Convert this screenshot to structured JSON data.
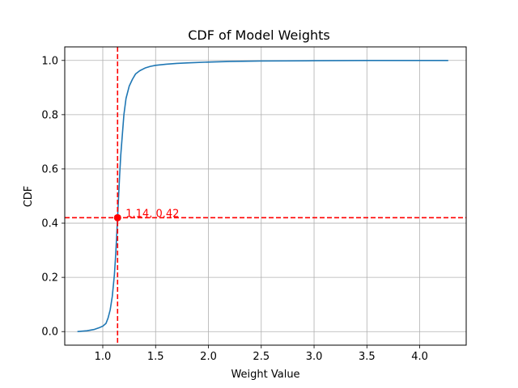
{
  "chart_data": {
    "type": "line",
    "title": "CDF of Model Weights",
    "xlabel": "Weight Value",
    "ylabel": "CDF",
    "xlim": [
      0.64,
      4.44
    ],
    "ylim": [
      -0.05,
      1.05
    ],
    "xticks": [
      1.0,
      1.5,
      2.0,
      2.5,
      3.0,
      3.5,
      4.0
    ],
    "xtick_labels": [
      "1.0",
      "1.5",
      "2.0",
      "2.5",
      "3.0",
      "3.5",
      "4.0"
    ],
    "yticks": [
      0.0,
      0.2,
      0.4,
      0.6,
      0.8,
      1.0
    ],
    "ytick_labels": [
      "0.0",
      "0.2",
      "0.4",
      "0.6",
      "0.8",
      "1.0"
    ],
    "grid": true,
    "series": [
      {
        "color": "#1f77b4",
        "x": [
          0.76,
          0.85,
          0.92,
          0.97,
          1.0,
          1.03,
          1.05,
          1.07,
          1.09,
          1.11,
          1.12,
          1.13,
          1.14,
          1.15,
          1.16,
          1.17,
          1.18,
          1.2,
          1.22,
          1.25,
          1.28,
          1.31,
          1.35,
          1.4,
          1.45,
          1.5,
          1.6,
          1.7,
          1.8,
          2.0,
          2.2,
          2.5,
          3.0,
          3.5,
          4.0,
          4.27
        ],
        "y": [
          0.0,
          0.003,
          0.008,
          0.015,
          0.02,
          0.03,
          0.05,
          0.08,
          0.13,
          0.21,
          0.27,
          0.34,
          0.42,
          0.5,
          0.58,
          0.65,
          0.7,
          0.8,
          0.86,
          0.905,
          0.93,
          0.95,
          0.962,
          0.972,
          0.978,
          0.982,
          0.986,
          0.989,
          0.991,
          0.994,
          0.996,
          0.998,
          0.999,
          1.0,
          1.0,
          1.0
        ]
      }
    ],
    "reference_lines": {
      "color": "#ff0000",
      "vertical_x": 1.14,
      "horizontal_y": 0.42,
      "style": "dashed"
    },
    "marker": {
      "x": 1.14,
      "y": 0.42,
      "color": "#ff0000"
    },
    "annotation": {
      "text": "1.14, 0.42",
      "color": "#ff0000"
    }
  }
}
